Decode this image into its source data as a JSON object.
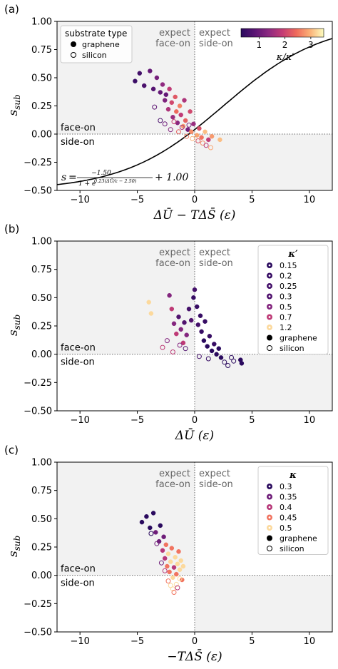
{
  "colors": {
    "shade": "#f2f2f2",
    "axis": "#000000",
    "region_label": "#666666",
    "fit_line": "#000000",
    "grid_dotted": "#666666",
    "magma_stops": [
      "#2a0a5e",
      "#5b1574",
      "#8c2981",
      "#c43c75",
      "#ef6a5c",
      "#fbb177",
      "#fcfdbf"
    ]
  },
  "region_labels": {
    "face_on_top": [
      "expect",
      "face-on"
    ],
    "side_on_top": [
      "expect",
      "side-on"
    ],
    "face_on": "face-on",
    "side_on": "side-on"
  },
  "chart_data": [
    {
      "type": "scatter",
      "panel_label": "(a)",
      "xlabel": "ΔŪ − TΔS̄ (ε)",
      "ylabel": "s_sub",
      "ylabel_main": "s",
      "ylabel_sub": "sub",
      "xlim": [
        -12,
        12
      ],
      "ylim": [
        -0.5,
        1.0
      ],
      "xticks": [
        -10,
        -5,
        0,
        5,
        10
      ],
      "xtick_labels": [
        "−10",
        "−5",
        "0",
        "5",
        "10"
      ],
      "yticks": [
        -0.5,
        -0.25,
        0.0,
        0.25,
        0.5,
        0.75,
        1.0
      ],
      "ytick_labels": [
        "−0.50",
        "−0.25",
        "0.00",
        "0.25",
        "0.50",
        "0.75",
        "1.00"
      ],
      "legend": {
        "title": "substrate type",
        "entries": [
          {
            "label": "graphene",
            "marker": "filled"
          },
          {
            "label": "silicon",
            "marker": "open"
          }
        ],
        "position": "upper-left"
      },
      "colorbar": {
        "label": "κ/κ′",
        "range": [
          0.3,
          3.5
        ],
        "ticks": [
          1,
          2,
          3
        ],
        "tick_labels": [
          "1",
          "2",
          "3"
        ],
        "position": "upper-right"
      },
      "fit_curve": {
        "equation_text": "s = −1.50 / (1 + e^{0.23(ΔŪ/ε − 2.50)}) + 1.00",
        "label_s": "s",
        "label_eq": "=",
        "label_num": "−1.50",
        "label_den_1": "1 + e",
        "label_den_exp": "0.23(ΔŪ/ε − 2.50)",
        "label_tail": "+ 1.00",
        "A": -1.5,
        "k": 0.23,
        "x0": 2.5,
        "C": 1.0
      },
      "points": [
        {
          "x": -5.2,
          "y": 0.47,
          "c": 0.5,
          "filled": true
        },
        {
          "x": -4.8,
          "y": 0.54,
          "c": 0.6,
          "filled": true
        },
        {
          "x": -4.4,
          "y": 0.43,
          "c": 0.7,
          "filled": true
        },
        {
          "x": -3.9,
          "y": 0.56,
          "c": 1.0,
          "filled": true
        },
        {
          "x": -3.6,
          "y": 0.4,
          "c": 0.8,
          "filled": true
        },
        {
          "x": -3.3,
          "y": 0.5,
          "c": 1.2,
          "filled": true
        },
        {
          "x": -3.0,
          "y": 0.37,
          "c": 1.0,
          "filled": true
        },
        {
          "x": -2.8,
          "y": 0.44,
          "c": 1.5,
          "filled": true
        },
        {
          "x": -2.6,
          "y": 0.3,
          "c": 1.3,
          "filled": true
        },
        {
          "x": -2.5,
          "y": 0.35,
          "c": 1.0,
          "filled": true
        },
        {
          "x": -2.3,
          "y": 0.22,
          "c": 1.8,
          "filled": true
        },
        {
          "x": -2.2,
          "y": 0.4,
          "c": 2.0,
          "filled": true
        },
        {
          "x": -2.0,
          "y": 0.28,
          "c": 2.2,
          "filled": true
        },
        {
          "x": -1.9,
          "y": 0.15,
          "c": 1.6,
          "filled": true
        },
        {
          "x": -1.7,
          "y": 0.33,
          "c": 2.4,
          "filled": true
        },
        {
          "x": -1.6,
          "y": 0.2,
          "c": 2.6,
          "filled": true
        },
        {
          "x": -1.5,
          "y": 0.1,
          "c": 1.4,
          "filled": true
        },
        {
          "x": -1.3,
          "y": 0.25,
          "c": 2.8,
          "filled": true
        },
        {
          "x": -1.2,
          "y": 0.17,
          "c": 2.0,
          "filled": true
        },
        {
          "x": -1.0,
          "y": 0.07,
          "c": 3.0,
          "filled": true
        },
        {
          "x": -0.9,
          "y": 0.3,
          "c": 1.8,
          "filled": true
        },
        {
          "x": -0.8,
          "y": 0.12,
          "c": 2.5,
          "filled": true
        },
        {
          "x": -0.6,
          "y": 0.04,
          "c": 1.2,
          "filled": true
        },
        {
          "x": -0.4,
          "y": 0.2,
          "c": 2.2,
          "filled": true
        },
        {
          "x": -0.3,
          "y": 0.02,
          "c": 2.9,
          "filled": true
        },
        {
          "x": -0.1,
          "y": 0.09,
          "c": 1.6,
          "filled": true
        },
        {
          "x": 0.2,
          "y": -0.01,
          "c": 3.1,
          "filled": true
        },
        {
          "x": 0.4,
          "y": 0.05,
          "c": 2.3,
          "filled": true
        },
        {
          "x": 0.6,
          "y": -0.03,
          "c": 2.7,
          "filled": true
        },
        {
          "x": 0.9,
          "y": 0.02,
          "c": 3.3,
          "filled": true
        },
        {
          "x": 1.2,
          "y": -0.05,
          "c": 2.0,
          "filled": true
        },
        {
          "x": 1.5,
          "y": -0.02,
          "c": 3.0,
          "filled": true
        },
        {
          "x": 2.2,
          "y": -0.05,
          "c": 3.3,
          "filled": true
        },
        {
          "x": -3.5,
          "y": 0.24,
          "c": 0.9,
          "filled": false
        },
        {
          "x": -3.0,
          "y": 0.12,
          "c": 0.7,
          "filled": false
        },
        {
          "x": -2.6,
          "y": 0.09,
          "c": 1.1,
          "filled": false
        },
        {
          "x": -2.1,
          "y": 0.04,
          "c": 1.4,
          "filled": false
        },
        {
          "x": -1.8,
          "y": 0.11,
          "c": 2.1,
          "filled": false
        },
        {
          "x": -1.4,
          "y": 0.02,
          "c": 2.5,
          "filled": false
        },
        {
          "x": -1.1,
          "y": 0.06,
          "c": 1.7,
          "filled": false
        },
        {
          "x": -0.7,
          "y": -0.02,
          "c": 2.8,
          "filled": false
        },
        {
          "x": -0.5,
          "y": 0.08,
          "c": 1.3,
          "filled": false
        },
        {
          "x": -0.2,
          "y": -0.04,
          "c": 3.2,
          "filled": false
        },
        {
          "x": 0.3,
          "y": -0.06,
          "c": 2.4,
          "filled": false
        },
        {
          "x": 0.7,
          "y": -0.08,
          "c": 2.9,
          "filled": false
        },
        {
          "x": 1.0,
          "y": -0.1,
          "c": 1.9,
          "filled": false
        },
        {
          "x": 1.4,
          "y": -0.12,
          "c": 3.1,
          "filled": false
        }
      ]
    },
    {
      "type": "scatter",
      "panel_label": "(b)",
      "xlabel": "ΔŪ (ε)",
      "ylabel": "s_sub",
      "ylabel_main": "s",
      "ylabel_sub": "sub",
      "xlim": [
        -12,
        12
      ],
      "ylim": [
        -0.5,
        1.0
      ],
      "xticks": [
        -10,
        -5,
        0,
        5,
        10
      ],
      "xtick_labels": [
        "−10",
        "−5",
        "0",
        "5",
        "10"
      ],
      "yticks": [
        -0.5,
        -0.25,
        0.0,
        0.25,
        0.5,
        0.75,
        1.0
      ],
      "ytick_labels": [
        "−0.50",
        "−0.25",
        "0.00",
        "0.25",
        "0.50",
        "0.75",
        "1.00"
      ],
      "legend": {
        "title": "κ′",
        "entries": [
          {
            "label": "0.15",
            "c": 0.15
          },
          {
            "label": "0.2",
            "c": 0.2
          },
          {
            "label": "0.25",
            "c": 0.25
          },
          {
            "label": "0.3",
            "c": 0.3
          },
          {
            "label": "0.5",
            "c": 0.5
          },
          {
            "label": "0.7",
            "c": 0.7
          },
          {
            "label": "1.2",
            "c": 1.2
          },
          {
            "label": "graphene",
            "marker": "filled"
          },
          {
            "label": "silicon",
            "marker": "open"
          }
        ],
        "position": "upper-right"
      },
      "color_range": [
        0.15,
        1.2
      ],
      "points": [
        {
          "x": -4.0,
          "y": 0.46,
          "c": 1.2,
          "filled": true
        },
        {
          "x": -3.8,
          "y": 0.36,
          "c": 1.2,
          "filled": true
        },
        {
          "x": -2.2,
          "y": 0.52,
          "c": 0.5,
          "filled": true
        },
        {
          "x": -2.0,
          "y": 0.4,
          "c": 0.7,
          "filled": true
        },
        {
          "x": -1.8,
          "y": 0.27,
          "c": 0.5,
          "filled": true
        },
        {
          "x": -1.6,
          "y": 0.18,
          "c": 0.7,
          "filled": true
        },
        {
          "x": -1.4,
          "y": 0.33,
          "c": 0.3,
          "filled": true
        },
        {
          "x": -1.2,
          "y": 0.22,
          "c": 0.5,
          "filled": true
        },
        {
          "x": -1.0,
          "y": 0.1,
          "c": 0.7,
          "filled": true
        },
        {
          "x": -0.9,
          "y": 0.28,
          "c": 0.3,
          "filled": true
        },
        {
          "x": -0.7,
          "y": 0.17,
          "c": 0.5,
          "filled": true
        },
        {
          "x": -0.5,
          "y": 0.4,
          "c": 0.25,
          "filled": true
        },
        {
          "x": -0.3,
          "y": 0.3,
          "c": 0.3,
          "filled": true
        },
        {
          "x": -0.1,
          "y": 0.5,
          "c": 0.2,
          "filled": true
        },
        {
          "x": 0.0,
          "y": 0.57,
          "c": 0.25,
          "filled": true
        },
        {
          "x": 0.2,
          "y": 0.42,
          "c": 0.2,
          "filled": true
        },
        {
          "x": 0.3,
          "y": 0.26,
          "c": 0.25,
          "filled": true
        },
        {
          "x": 0.5,
          "y": 0.34,
          "c": 0.2,
          "filled": true
        },
        {
          "x": 0.6,
          "y": 0.2,
          "c": 0.2,
          "filled": true
        },
        {
          "x": 0.8,
          "y": 0.12,
          "c": 0.15,
          "filled": true
        },
        {
          "x": 0.9,
          "y": 0.29,
          "c": 0.2,
          "filled": true
        },
        {
          "x": 1.1,
          "y": 0.07,
          "c": 0.15,
          "filled": true
        },
        {
          "x": 1.3,
          "y": 0.16,
          "c": 0.2,
          "filled": true
        },
        {
          "x": 1.5,
          "y": 0.03,
          "c": 0.15,
          "filled": true
        },
        {
          "x": 1.7,
          "y": 0.09,
          "c": 0.2,
          "filled": true
        },
        {
          "x": 1.9,
          "y": 0.0,
          "c": 0.15,
          "filled": true
        },
        {
          "x": 2.1,
          "y": 0.05,
          "c": 0.15,
          "filled": true
        },
        {
          "x": 2.3,
          "y": -0.03,
          "c": 0.15,
          "filled": true
        },
        {
          "x": 4.0,
          "y": -0.05,
          "c": 0.15,
          "filled": true
        },
        {
          "x": 4.1,
          "y": -0.08,
          "c": 0.15,
          "filled": true
        },
        {
          "x": -2.8,
          "y": 0.06,
          "c": 0.7,
          "filled": false
        },
        {
          "x": -2.4,
          "y": 0.12,
          "c": 0.5,
          "filled": false
        },
        {
          "x": -1.9,
          "y": 0.02,
          "c": 0.7,
          "filled": false
        },
        {
          "x": -1.3,
          "y": 0.08,
          "c": 0.5,
          "filled": false
        },
        {
          "x": -0.8,
          "y": 0.05,
          "c": 0.3,
          "filled": false
        },
        {
          "x": 0.4,
          "y": -0.02,
          "c": 0.25,
          "filled": false
        },
        {
          "x": 1.2,
          "y": -0.04,
          "c": 0.2,
          "filled": false
        },
        {
          "x": 2.6,
          "y": -0.07,
          "c": 0.15,
          "filled": false
        },
        {
          "x": 2.9,
          "y": -0.1,
          "c": 0.15,
          "filled": false
        },
        {
          "x": 3.2,
          "y": -0.03,
          "c": 0.15,
          "filled": false
        },
        {
          "x": 3.4,
          "y": -0.06,
          "c": 0.15,
          "filled": false
        }
      ]
    },
    {
      "type": "scatter",
      "panel_label": "(c)",
      "xlabel": "−TΔS̄ (ε)",
      "ylabel": "s_sub",
      "ylabel_main": "s",
      "ylabel_sub": "sub",
      "xlim": [
        -12,
        12
      ],
      "ylim": [
        -0.5,
        1.0
      ],
      "xticks": [
        -10,
        -5,
        0,
        5,
        10
      ],
      "xtick_labels": [
        "−10",
        "−5",
        "0",
        "5",
        "10"
      ],
      "yticks": [
        -0.5,
        -0.25,
        0.0,
        0.25,
        0.5,
        0.75,
        1.0
      ],
      "ytick_labels": [
        "−0.50",
        "−0.25",
        "0.00",
        "0.25",
        "0.50",
        "0.75",
        "1.00"
      ],
      "legend": {
        "title": "κ",
        "entries": [
          {
            "label": "0.3",
            "c": 0.3
          },
          {
            "label": "0.35",
            "c": 0.35
          },
          {
            "label": "0.4",
            "c": 0.4
          },
          {
            "label": "0.45",
            "c": 0.45
          },
          {
            "label": "0.5",
            "c": 0.5
          },
          {
            "label": "graphene",
            "marker": "filled"
          },
          {
            "label": "silicon",
            "marker": "open"
          }
        ],
        "position": "upper-right"
      },
      "color_range": [
        0.3,
        0.5
      ],
      "points": [
        {
          "x": -4.6,
          "y": 0.47,
          "c": 0.3,
          "filled": true
        },
        {
          "x": -4.2,
          "y": 0.52,
          "c": 0.3,
          "filled": true
        },
        {
          "x": -3.9,
          "y": 0.42,
          "c": 0.3,
          "filled": true
        },
        {
          "x": -3.6,
          "y": 0.55,
          "c": 0.3,
          "filled": true
        },
        {
          "x": -3.4,
          "y": 0.38,
          "c": 0.35,
          "filled": true
        },
        {
          "x": -3.1,
          "y": 0.3,
          "c": 0.35,
          "filled": true
        },
        {
          "x": -3.0,
          "y": 0.44,
          "c": 0.3,
          "filled": true
        },
        {
          "x": -2.8,
          "y": 0.22,
          "c": 0.4,
          "filled": true
        },
        {
          "x": -2.7,
          "y": 0.34,
          "c": 0.35,
          "filled": true
        },
        {
          "x": -2.6,
          "y": 0.15,
          "c": 0.4,
          "filled": true
        },
        {
          "x": -2.5,
          "y": 0.27,
          "c": 0.45,
          "filled": true
        },
        {
          "x": -2.4,
          "y": 0.08,
          "c": 0.45,
          "filled": true
        },
        {
          "x": -2.3,
          "y": 0.19,
          "c": 0.5,
          "filled": true
        },
        {
          "x": -2.2,
          "y": 0.03,
          "c": 0.45,
          "filled": true
        },
        {
          "x": -2.1,
          "y": 0.12,
          "c": 0.5,
          "filled": true
        },
        {
          "x": -2.0,
          "y": 0.24,
          "c": 0.45,
          "filled": true
        },
        {
          "x": -1.9,
          "y": -0.02,
          "c": 0.5,
          "filled": true
        },
        {
          "x": -1.8,
          "y": 0.07,
          "c": 0.4,
          "filled": true
        },
        {
          "x": -1.7,
          "y": 0.16,
          "c": 0.5,
          "filled": true
        },
        {
          "x": -1.6,
          "y": 0.01,
          "c": 0.45,
          "filled": true
        },
        {
          "x": -1.5,
          "y": 0.1,
          "c": 0.5,
          "filled": true
        },
        {
          "x": -1.4,
          "y": 0.21,
          "c": 0.45,
          "filled": true
        },
        {
          "x": -1.3,
          "y": 0.05,
          "c": 0.5,
          "filled": true
        },
        {
          "x": -1.2,
          "y": 0.13,
          "c": 0.5,
          "filled": true
        },
        {
          "x": -1.1,
          "y": -0.04,
          "c": 0.45,
          "filled": true
        },
        {
          "x": -1.0,
          "y": 0.08,
          "c": 0.5,
          "filled": true
        },
        {
          "x": -3.8,
          "y": 0.37,
          "c": 0.3,
          "filled": false
        },
        {
          "x": -3.3,
          "y": 0.28,
          "c": 0.35,
          "filled": false
        },
        {
          "x": -2.9,
          "y": 0.11,
          "c": 0.35,
          "filled": false
        },
        {
          "x": -2.6,
          "y": 0.04,
          "c": 0.4,
          "filled": false
        },
        {
          "x": -2.3,
          "y": -0.05,
          "c": 0.45,
          "filled": false
        },
        {
          "x": -2.1,
          "y": -0.09,
          "c": 0.5,
          "filled": false
        },
        {
          "x": -1.9,
          "y": -0.12,
          "c": 0.5,
          "filled": false
        },
        {
          "x": -1.8,
          "y": -0.15,
          "c": 0.45,
          "filled": false
        },
        {
          "x": -1.6,
          "y": -0.08,
          "c": 0.5,
          "filled": false
        },
        {
          "x": -1.5,
          "y": -0.11,
          "c": 0.4,
          "filled": false
        },
        {
          "x": -1.3,
          "y": -0.03,
          "c": 0.5,
          "filled": false
        }
      ]
    }
  ]
}
